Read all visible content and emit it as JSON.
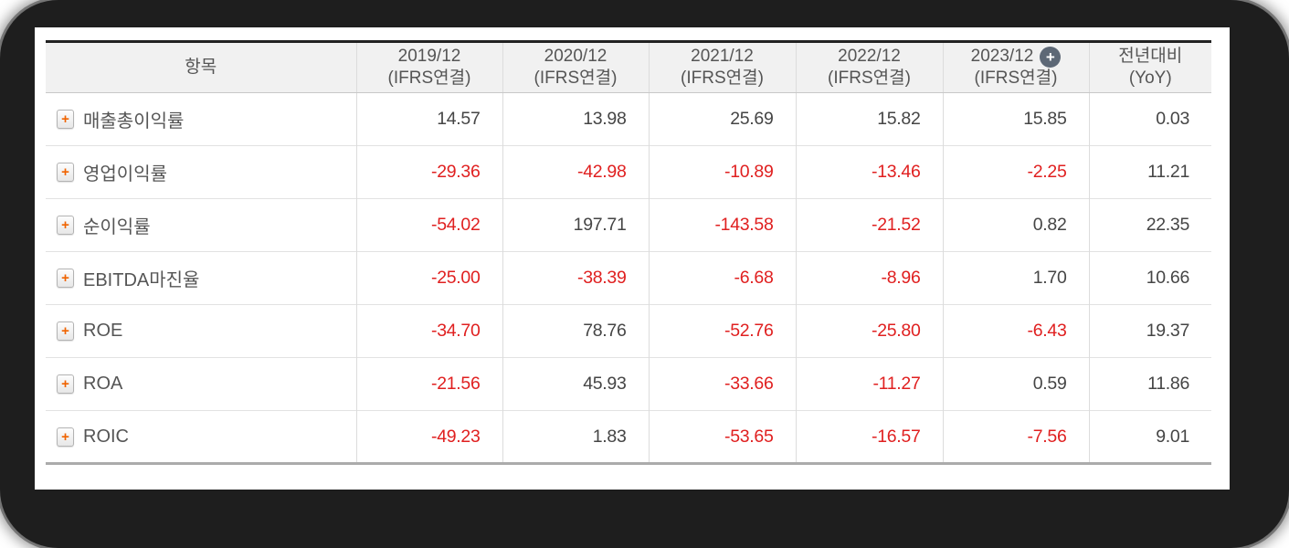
{
  "table": {
    "header": {
      "item_label": "항목",
      "columns": [
        {
          "line1": "2019/12",
          "line2": "(IFRS연결)",
          "has_plus": false
        },
        {
          "line1": "2020/12",
          "line2": "(IFRS연결)",
          "has_plus": false
        },
        {
          "line1": "2021/12",
          "line2": "(IFRS연결)",
          "has_plus": false
        },
        {
          "line1": "2022/12",
          "line2": "(IFRS연결)",
          "has_plus": false
        },
        {
          "line1": "2023/12",
          "line2": "(IFRS연결)",
          "has_plus": true
        },
        {
          "line1": "전년대비",
          "line2": "(YoY)",
          "has_plus": false
        }
      ],
      "plus_icon_glyph": "+"
    },
    "rows": [
      {
        "label": "매출총이익률",
        "values": [
          "14.57",
          "13.98",
          "25.69",
          "15.82",
          "15.85",
          "0.03"
        ]
      },
      {
        "label": "영업이익률",
        "values": [
          "-29.36",
          "-42.98",
          "-10.89",
          "-13.46",
          "-2.25",
          "11.21"
        ]
      },
      {
        "label": "순이익률",
        "values": [
          "-54.02",
          "197.71",
          "-143.58",
          "-21.52",
          "0.82",
          "22.35"
        ]
      },
      {
        "label": "EBITDA마진율",
        "values": [
          "-25.00",
          "-38.39",
          "-6.68",
          "-8.96",
          "1.70",
          "10.66"
        ]
      },
      {
        "label": "ROE",
        "values": [
          "-34.70",
          "78.76",
          "-52.76",
          "-25.80",
          "-6.43",
          "19.37"
        ]
      },
      {
        "label": "ROA",
        "values": [
          "-21.56",
          "45.93",
          "-33.66",
          "-11.27",
          "0.59",
          "11.86"
        ]
      },
      {
        "label": "ROIC",
        "values": [
          "-49.23",
          "1.83",
          "-53.65",
          "-16.57",
          "-7.56",
          "9.01"
        ]
      }
    ],
    "row_plus_glyph": "+"
  },
  "colors": {
    "negative_value": "#e02020",
    "value_text": "#454545",
    "header_bg": "#f1f1f1",
    "table_top_border": "#222222",
    "table_bottom_border": "#ababab",
    "row_plus_orange": "#f06300",
    "header_plus_circle": "#5d6876",
    "frame_black": "#1e1e1e"
  }
}
